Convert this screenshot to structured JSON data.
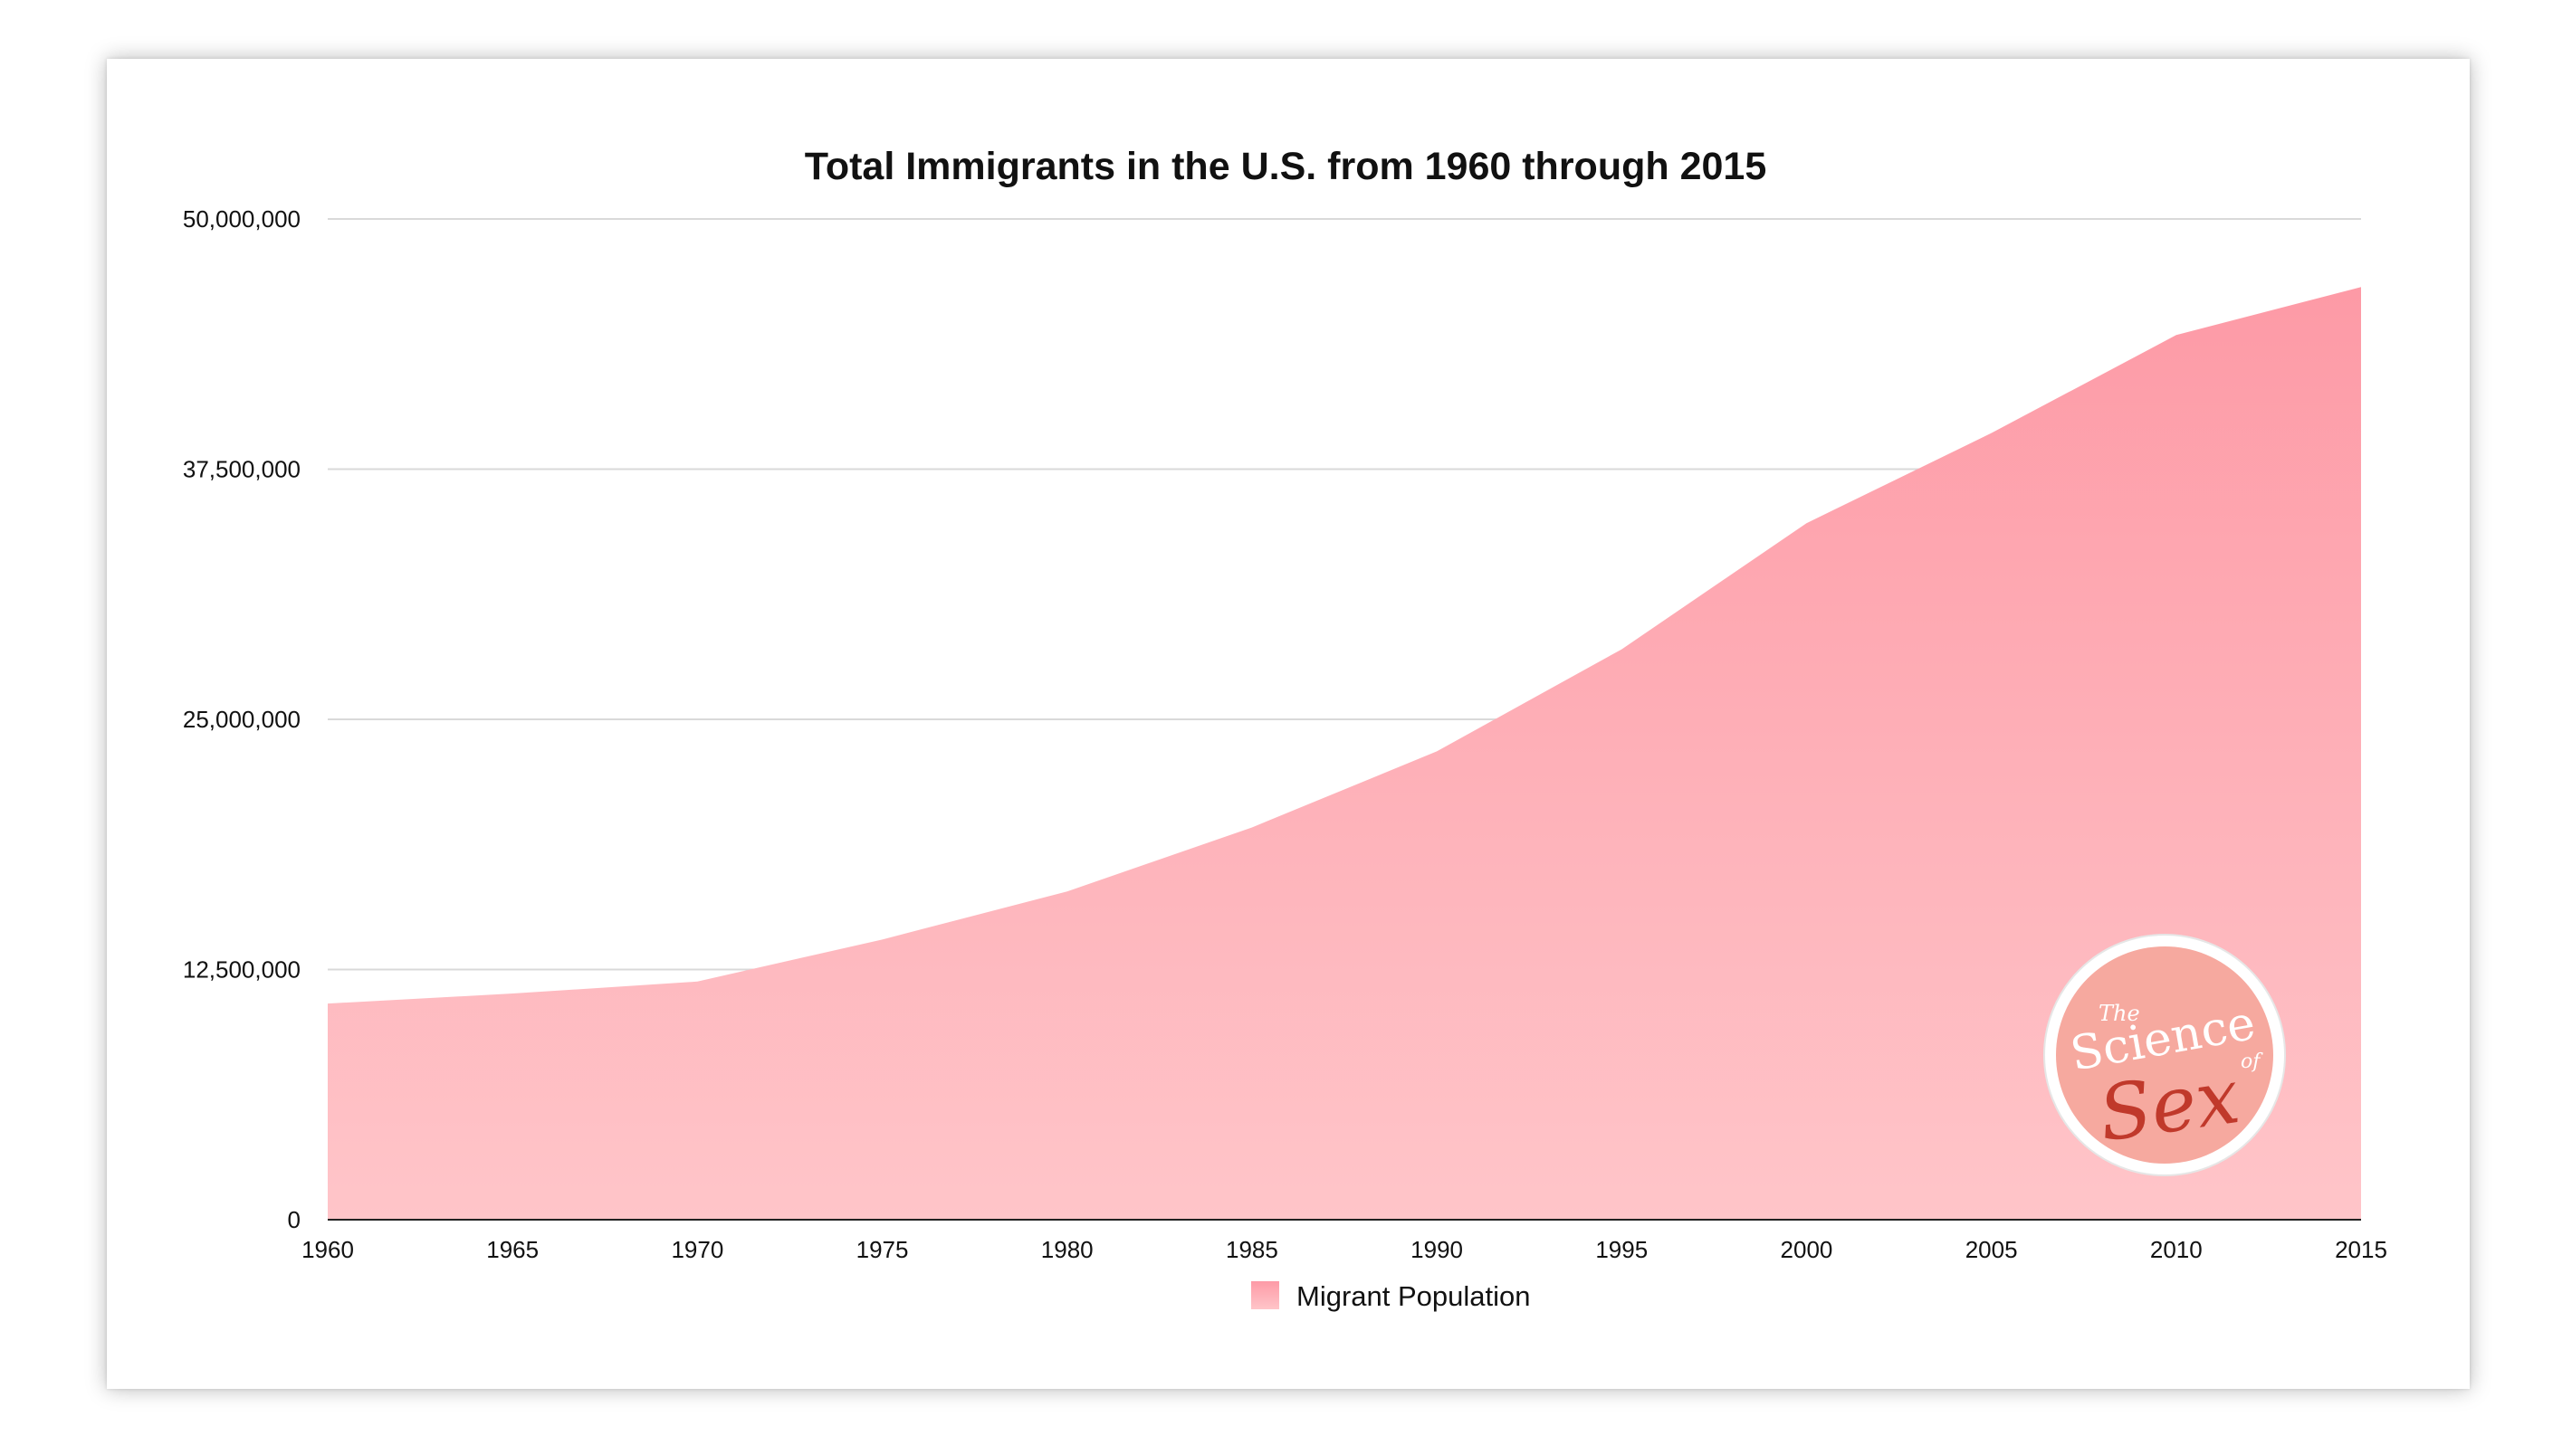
{
  "chart_data": {
    "type": "area",
    "title": "Total Immigrants in the U.S. from 1960 through 2015",
    "x": [
      "1960",
      "1965",
      "1970",
      "1975",
      "1980",
      "1985",
      "1990",
      "1995",
      "2000",
      "2005",
      "2010",
      "2015"
    ],
    "y_tick_labels": [
      "0",
      "12,500,000",
      "25,000,000",
      "37,500,000",
      "50,000,000"
    ],
    "ylim": [
      0,
      50000000
    ],
    "grid": true,
    "legend_position": "bottom-center",
    "series": [
      {
        "name": "Migrant Population",
        "color": "#fd9aa6",
        "gradient_bottom_color": "#ffc5c9",
        "values": [
          10800000,
          11300000,
          11900000,
          14000000,
          16400000,
          19600000,
          23400000,
          28500000,
          34800000,
          39300000,
          44200000,
          46600000
        ]
      }
    ]
  },
  "watermark": {
    "text": [
      "The",
      "Science",
      "of",
      "Sex"
    ],
    "background_color": "#f6a99f",
    "script_color": "#c0392b"
  }
}
